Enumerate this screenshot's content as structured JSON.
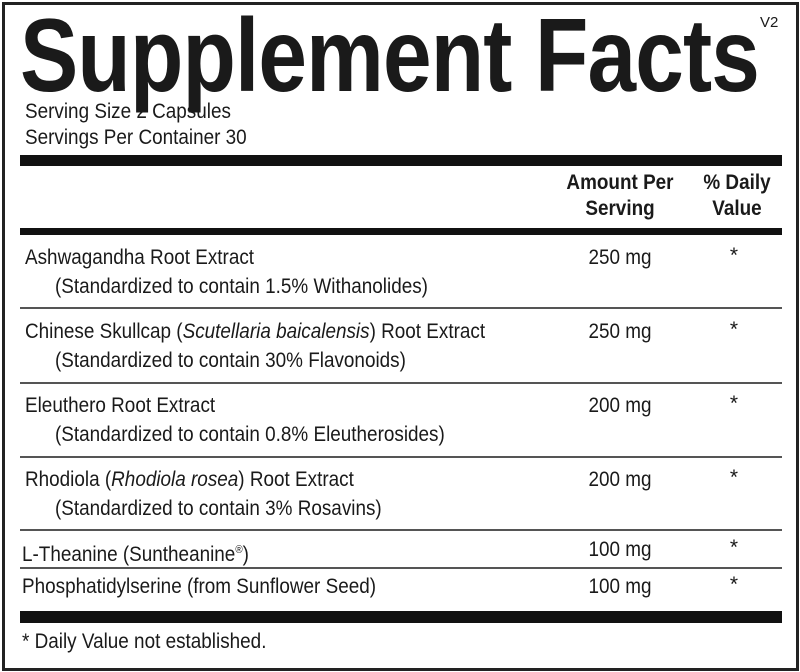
{
  "title": "Supplement Facts",
  "version": "V2",
  "serving_size": "Serving Size  2 Capsules",
  "servings_per_container": "Servings Per Container  30",
  "header": {
    "amount_line1": "Amount Per",
    "amount_line2": "Serving",
    "dv_line1": "% Daily",
    "dv_line2": "Value"
  },
  "rows": [
    {
      "name": "Ashwagandha Root Extract",
      "sub": "(Standardized to contain 1.5% Withanolides)",
      "amount": "250 mg",
      "dv": "*"
    },
    {
      "name_pre": "Chinese Skullcap (",
      "name_italic": "Scutellaria baicalensis",
      "name_post": ") Root Extract",
      "sub": "(Standardized to contain 30% Flavonoids)",
      "amount": "250 mg",
      "dv": "*"
    },
    {
      "name": "Eleuthero Root Extract",
      "sub": "(Standardized to contain 0.8% Eleutherosides)",
      "amount": "200 mg",
      "dv": "*"
    },
    {
      "name_pre": "Rhodiola (",
      "name_italic": "Rhodiola rosea",
      "name_post": ") Root Extract",
      "sub": "(Standardized to contain 3% Rosavins)",
      "amount": "200 mg",
      "dv": "*"
    },
    {
      "name": "L-Theanine (Suntheanine",
      "name_sup": "®",
      "name_post": ")",
      "amount": "100 mg",
      "dv": "*"
    },
    {
      "name": "Phosphatidylserine (from Sunflower Seed)",
      "amount": "100 mg",
      "dv": "*"
    }
  ],
  "footnote": "* Daily Value not established."
}
